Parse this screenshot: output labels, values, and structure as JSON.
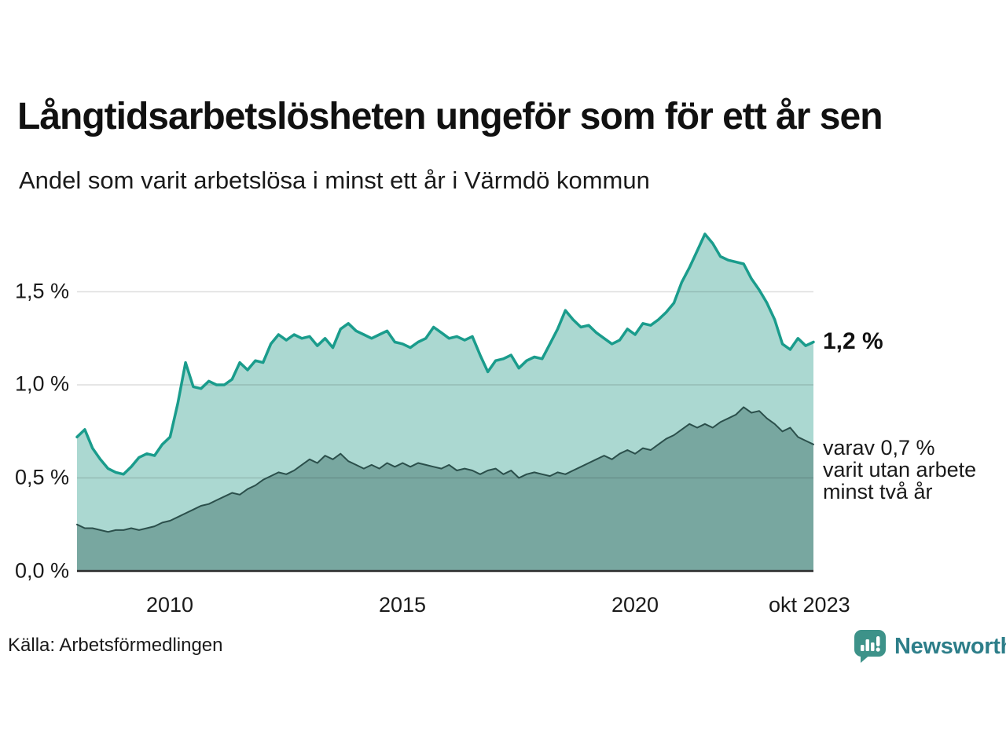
{
  "header": {
    "title": "Långtidsarbetslösheten ungeför som för ett år sen",
    "subtitle": "Andel som varit arbetslösa i minst ett år i Värmdö kommun"
  },
  "footer": {
    "source": "Källa: Arbetsförmedlingen",
    "brand": "Newsworthy",
    "logo_icon": "newsworthy-speech-bubble-bar-chart-icon"
  },
  "colors": {
    "total_line": "#1a9c8c",
    "total_fill": "#abd8d1",
    "subset_line": "#2b4f4b",
    "subset_fill": "#78a7a0",
    "gridline": "#d9d9d9",
    "axis_baseline": "#2e2e2e",
    "text": "#1a1a1a",
    "logo_mark": "#3d9289",
    "logo_text": "#2d7e89"
  },
  "chart_data": {
    "type": "area",
    "title": "Långtidsarbetslösheten ungeför som för ett år sen",
    "subtitle": "Andel som varit arbetslösa i minst ett år i Värmdö kommun",
    "unit": "%",
    "x_start_year": 2008,
    "x_step_months": 2,
    "xlim": [
      2008,
      2023.83
    ],
    "ylim": [
      0,
      1.9
    ],
    "grid": "horizontal",
    "x_ticks": [
      {
        "label": "2010",
        "year": 2010
      },
      {
        "label": "2015",
        "year": 2015
      },
      {
        "label": "2020",
        "year": 2020
      },
      {
        "label": "okt 2023",
        "year": 2023.83
      }
    ],
    "y_ticks": [
      {
        "label": "1,5 %",
        "value": 1.5
      },
      {
        "label": "1,0 %",
        "value": 1.0
      },
      {
        "label": "0,5 %",
        "value": 0.5
      },
      {
        "label": "0,0 %",
        "value": 0.0
      }
    ],
    "y_tick_values": [
      1.5,
      1.0,
      0.5,
      0.0
    ],
    "series": [
      {
        "name": "Andel arbetslösa minst ett år",
        "end_label": "1,2 %",
        "end_value": 1.2,
        "color": "#1a9c8c",
        "fill": "#abd8d1",
        "stroke_width": 3.5,
        "values": [
          0.72,
          0.76,
          0.66,
          0.6,
          0.55,
          0.53,
          0.52,
          0.56,
          0.61,
          0.63,
          0.62,
          0.68,
          0.72,
          0.9,
          1.12,
          0.99,
          0.98,
          1.02,
          1.0,
          1.0,
          1.03,
          1.12,
          1.08,
          1.13,
          1.12,
          1.22,
          1.27,
          1.24,
          1.27,
          1.25,
          1.26,
          1.21,
          1.25,
          1.2,
          1.3,
          1.33,
          1.29,
          1.27,
          1.25,
          1.27,
          1.29,
          1.23,
          1.22,
          1.2,
          1.23,
          1.25,
          1.31,
          1.28,
          1.25,
          1.26,
          1.24,
          1.26,
          1.16,
          1.07,
          1.13,
          1.14,
          1.16,
          1.09,
          1.13,
          1.15,
          1.14,
          1.22,
          1.3,
          1.4,
          1.35,
          1.31,
          1.32,
          1.28,
          1.25,
          1.22,
          1.24,
          1.3,
          1.27,
          1.33,
          1.32,
          1.35,
          1.39,
          1.44,
          1.55,
          1.63,
          1.72,
          1.81,
          1.76,
          1.69,
          1.67,
          1.66,
          1.65,
          1.57,
          1.51,
          1.44,
          1.35,
          1.22,
          1.19,
          1.25,
          1.21,
          1.23
        ]
      },
      {
        "name": "varav utan arbete minst två år",
        "end_label": "varav 0,7 % varit utan arbete minst två år",
        "end_value": 0.7,
        "color": "#2b4f4b",
        "fill": "#78a7a0",
        "stroke_width": 2,
        "values": [
          0.25,
          0.23,
          0.23,
          0.22,
          0.21,
          0.22,
          0.22,
          0.23,
          0.22,
          0.23,
          0.24,
          0.26,
          0.27,
          0.29,
          0.31,
          0.33,
          0.35,
          0.36,
          0.38,
          0.4,
          0.42,
          0.41,
          0.44,
          0.46,
          0.49,
          0.51,
          0.53,
          0.52,
          0.54,
          0.57,
          0.6,
          0.58,
          0.62,
          0.6,
          0.63,
          0.59,
          0.57,
          0.55,
          0.57,
          0.55,
          0.58,
          0.56,
          0.58,
          0.56,
          0.58,
          0.57,
          0.56,
          0.55,
          0.57,
          0.54,
          0.55,
          0.54,
          0.52,
          0.54,
          0.55,
          0.52,
          0.54,
          0.5,
          0.52,
          0.53,
          0.52,
          0.51,
          0.53,
          0.52,
          0.54,
          0.56,
          0.58,
          0.6,
          0.62,
          0.6,
          0.63,
          0.65,
          0.63,
          0.66,
          0.65,
          0.68,
          0.71,
          0.73,
          0.76,
          0.79,
          0.77,
          0.79,
          0.77,
          0.8,
          0.82,
          0.84,
          0.88,
          0.85,
          0.86,
          0.82,
          0.79,
          0.75,
          0.77,
          0.72,
          0.7,
          0.68
        ]
      }
    ],
    "annotations": {
      "total_label": "1,2 %",
      "subset_label_lines": [
        "varav 0,7 %",
        "varit utan arbete",
        "minst två år"
      ]
    },
    "legend_position": "right-of-line-end"
  }
}
